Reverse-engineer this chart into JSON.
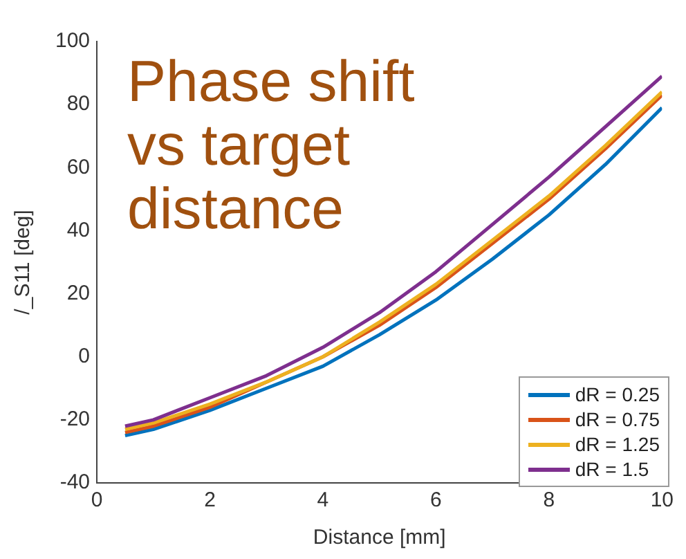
{
  "chart_data": {
    "type": "line",
    "annotations": [
      "Phase shift vs target distance"
    ],
    "xlabel": "Distance [mm]",
    "ylabel": "/_S11 [deg]",
    "x": [
      0.5,
      1,
      2,
      3,
      4,
      5,
      6,
      7,
      8,
      9,
      10
    ],
    "series": [
      {
        "name": "dR = 0.25",
        "color": "#0072bd",
        "values": [
          -25,
          -23,
          -17,
          -10,
          -3,
          7,
          18,
          31,
          45,
          61,
          79
        ]
      },
      {
        "name": "dR = 0.75",
        "color": "#d95319",
        "values": [
          -24,
          -22,
          -16,
          -8,
          0,
          10,
          22,
          36,
          50,
          66,
          83
        ]
      },
      {
        "name": "dR = 1.25",
        "color": "#edb120",
        "values": [
          -23,
          -21,
          -15,
          -8,
          0,
          11,
          23,
          37,
          51,
          67,
          84
        ]
      },
      {
        "name": "dR = 1.5",
        "color": "#7e2f8e",
        "values": [
          -22,
          -20,
          -13,
          -6,
          3,
          14,
          27,
          42,
          57,
          73,
          89
        ]
      }
    ],
    "xlim": [
      0,
      10
    ],
    "xticks": [
      0,
      2,
      4,
      6,
      8,
      10
    ],
    "ylim": [
      -40,
      100
    ],
    "yticks": [
      -40,
      -20,
      0,
      20,
      40,
      60,
      80,
      100
    ],
    "grid": false,
    "legend": "bottom right",
    "marker": "none",
    "line_style": "solid"
  }
}
